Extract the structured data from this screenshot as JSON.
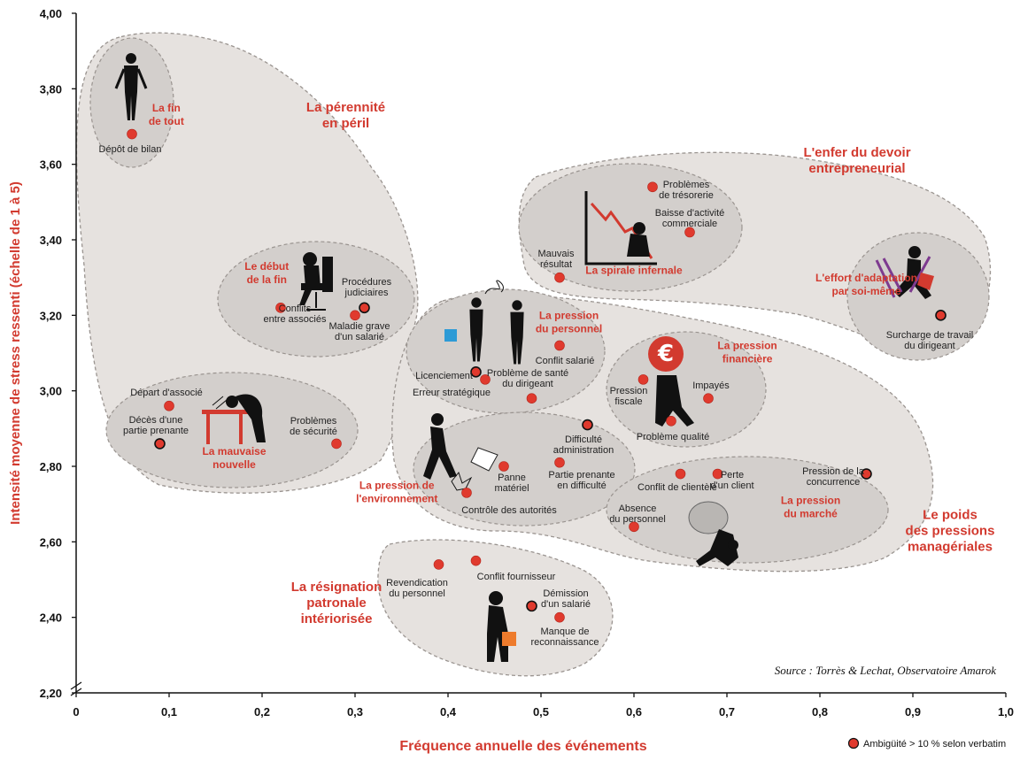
{
  "chart_data": {
    "type": "scatter",
    "xlabel": "Fréquence annuelle des événements",
    "ylabel": "Intensité moyenne de stress ressenti (échelle de 1 à 5)",
    "xlim": [
      0,
      1
    ],
    "ylim": [
      2.2,
      4.0
    ],
    "x_ticks": [
      "0",
      "0,1",
      "0,2",
      "0,3",
      "0,4",
      "0,5",
      "0,6",
      "0,7",
      "0,8",
      "0,9",
      "1,0"
    ],
    "y_ticks": [
      "2,20",
      "2,40",
      "2,60",
      "2,80",
      "3,00",
      "3,20",
      "3,40",
      "3,60",
      "3,80",
      "4,00"
    ],
    "source": "Source : Torrès & Lechat, Observatoire Amarok",
    "legend": "Ambigüité > 10 % selon verbatim",
    "colors": {
      "accent": "#d23a2f",
      "point": "#e03a2e",
      "bubble_big": "#e6e2df",
      "bubble_small": "#d3cfcc",
      "outline": "#9a9490"
    },
    "points": [
      {
        "label": "Dépôt de bilan",
        "x": 0.06,
        "y": 3.68,
        "ambiguous": false
      },
      {
        "label": "Conflits\nentre associés",
        "x": 0.22,
        "y": 3.22,
        "ambiguous": false
      },
      {
        "label": "Maladie grave\nd'un salarié",
        "x": 0.3,
        "y": 3.2,
        "ambiguous": false
      },
      {
        "label": "Procédures\njudiciaires",
        "x": 0.31,
        "y": 3.22,
        "ambiguous": true
      },
      {
        "label": "Départ d'associé",
        "x": 0.1,
        "y": 2.96,
        "ambiguous": false
      },
      {
        "label": "Décès d'une\npartie prenante",
        "x": 0.09,
        "y": 2.86,
        "ambiguous": true
      },
      {
        "label": "Problèmes\nde sécurité",
        "x": 0.28,
        "y": 2.86,
        "ambiguous": false
      },
      {
        "label": "Mauvais\nrésultat",
        "x": 0.52,
        "y": 3.3,
        "ambiguous": false
      },
      {
        "label": "Problèmes\nde trésorerie",
        "x": 0.62,
        "y": 3.54,
        "ambiguous": false
      },
      {
        "label": "Baisse d'activité\ncommerciale",
        "x": 0.66,
        "y": 3.42,
        "ambiguous": false
      },
      {
        "label": "Surcharge de travail\ndu dirigeant",
        "x": 0.93,
        "y": 3.2,
        "ambiguous": true
      },
      {
        "label": "Licenciement",
        "x": 0.43,
        "y": 3.05,
        "ambiguous": true
      },
      {
        "label": "Erreur stratégique",
        "x": 0.44,
        "y": 3.03,
        "ambiguous": false
      },
      {
        "label": "Problème de santé\ndu dirigeant",
        "x": 0.49,
        "y": 2.98,
        "ambiguous": false
      },
      {
        "label": "Conflit salarié",
        "x": 0.52,
        "y": 3.12,
        "ambiguous": false
      },
      {
        "label": "Pression\nfiscale",
        "x": 0.61,
        "y": 3.03,
        "ambiguous": false
      },
      {
        "label": "Impayés",
        "x": 0.68,
        "y": 2.98,
        "ambiguous": false
      },
      {
        "label": "Problème qualité",
        "x": 0.64,
        "y": 2.92,
        "ambiguous": false
      },
      {
        "label": "Difficulté\nadministration",
        "x": 0.55,
        "y": 2.91,
        "ambiguous": true
      },
      {
        "label": "Panne\nmatériel",
        "x": 0.46,
        "y": 2.8,
        "ambiguous": false
      },
      {
        "label": "Partie prenante\nen difficulté",
        "x": 0.52,
        "y": 2.81,
        "ambiguous": false
      },
      {
        "label": "Contrôle des autorités",
        "x": 0.42,
        "y": 2.73,
        "ambiguous": false
      },
      {
        "label": "Conflit de clientèle",
        "x": 0.65,
        "y": 2.78,
        "ambiguous": false
      },
      {
        "label": "Perte\nd'un client",
        "x": 0.69,
        "y": 2.78,
        "ambiguous": false
      },
      {
        "label": "Pression de la\nconcurrence",
        "x": 0.85,
        "y": 2.78,
        "ambiguous": true
      },
      {
        "label": "Absence\ndu personnel",
        "x": 0.6,
        "y": 2.64,
        "ambiguous": false
      },
      {
        "label": "Revendication\ndu personnel",
        "x": 0.39,
        "y": 2.54,
        "ambiguous": false
      },
      {
        "label": "Conflit fournisseur",
        "x": 0.43,
        "y": 2.55,
        "ambiguous": false
      },
      {
        "label": "Démission\nd'un salarié",
        "x": 0.49,
        "y": 2.43,
        "ambiguous": true
      },
      {
        "label": "Manque de\nreconnaissance",
        "x": 0.52,
        "y": 2.4,
        "ambiguous": false
      }
    ],
    "groups": [
      {
        "label": "La pérennité\nen péril",
        "x": 0.29,
        "y": 3.74,
        "size": 15
      },
      {
        "label": "L'enfer du devoir\nentrepreneurial",
        "x": 0.84,
        "y": 3.62,
        "size": 15
      },
      {
        "label": "Le poids\ndes pressions\nmanagériales",
        "x": 0.94,
        "y": 2.66,
        "size": 15
      },
      {
        "label": "La résignation\npatronale\nintériorisée",
        "x": 0.28,
        "y": 2.47,
        "size": 15
      },
      {
        "label": "La fin\nde tout",
        "x": 0.097,
        "y": 3.74,
        "size": 12
      },
      {
        "label": "Le début\nde la fin",
        "x": 0.205,
        "y": 3.32,
        "size": 12
      },
      {
        "label": "La mauvaise\nnouvelle",
        "x": 0.17,
        "y": 2.83,
        "size": 12
      },
      {
        "label": "La spirale infernale",
        "x": 0.6,
        "y": 3.31,
        "size": 12
      },
      {
        "label": "L'effort d'adaptation\npar soi-même",
        "x": 0.85,
        "y": 3.29,
        "size": 12
      },
      {
        "label": "La pression\ndu personnel",
        "x": 0.53,
        "y": 3.19,
        "size": 12
      },
      {
        "label": "La pression\nfinancière",
        "x": 0.722,
        "y": 3.11,
        "size": 12
      },
      {
        "label": "La pression de\nl'environnement",
        "x": 0.345,
        "y": 2.74,
        "size": 12
      },
      {
        "label": "La pression\ndu marché",
        "x": 0.79,
        "y": 2.7,
        "size": 12
      }
    ]
  }
}
